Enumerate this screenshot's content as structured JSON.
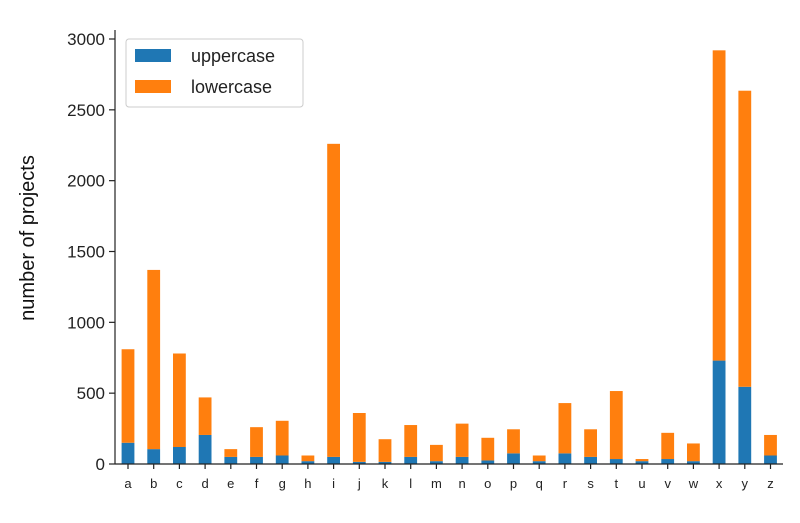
{
  "colors": {
    "uppercase": "#1f77b4",
    "lowercase": "#ff7f0e",
    "axis": "#222222"
  },
  "chart_data": {
    "type": "bar",
    "stacked": true,
    "title": "",
    "xlabel": "",
    "ylabel": "number of projects",
    "ylim": [
      0,
      3000
    ],
    "yticks": [
      0,
      500,
      1000,
      1500,
      2000,
      2500,
      3000
    ],
    "grid": false,
    "legend_position": "top-left",
    "categories": [
      "a",
      "b",
      "c",
      "d",
      "e",
      "f",
      "g",
      "h",
      "i",
      "j",
      "k",
      "l",
      "m",
      "n",
      "o",
      "p",
      "q",
      "r",
      "s",
      "t",
      "u",
      "v",
      "w",
      "x",
      "y",
      "z"
    ],
    "series": [
      {
        "name": "uppercase",
        "values": [
          150,
          105,
          120,
          205,
          50,
          50,
          60,
          20,
          50,
          15,
          15,
          50,
          20,
          50,
          25,
          75,
          20,
          75,
          50,
          35,
          20,
          35,
          20,
          730,
          545,
          60
        ]
      },
      {
        "name": "lowercase",
        "values": [
          660,
          1265,
          660,
          265,
          55,
          210,
          245,
          40,
          2210,
          345,
          160,
          225,
          115,
          235,
          160,
          170,
          40,
          355,
          195,
          480,
          15,
          185,
          125,
          2190,
          2090,
          145
        ]
      }
    ]
  }
}
